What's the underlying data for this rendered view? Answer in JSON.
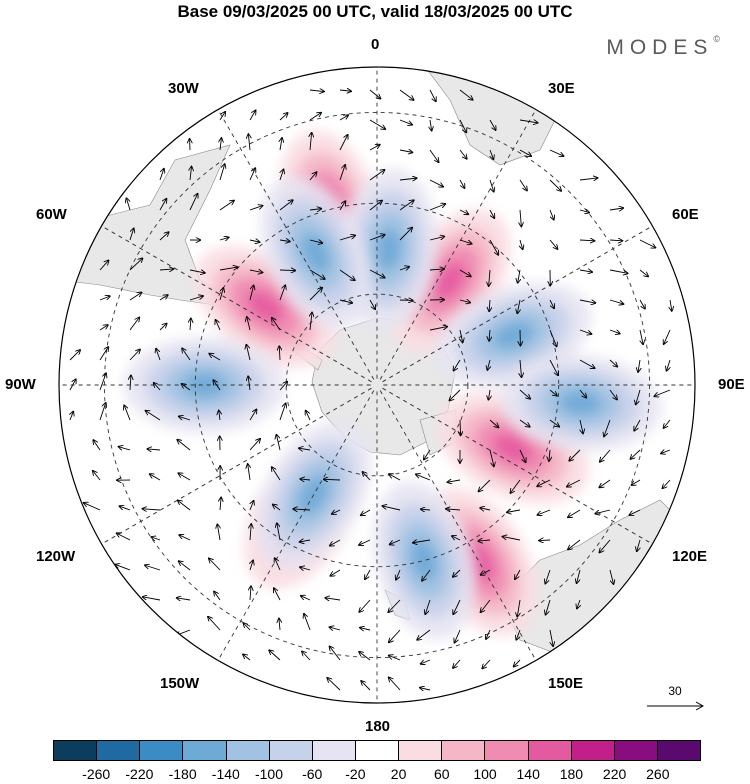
{
  "title": "Base 09/03/2025 00 UTC, valid 18/03/2025 00 UTC",
  "brand": "MODES",
  "brand_mark": "©",
  "longitude_labels": {
    "top": "0",
    "top_right": "30E",
    "right_upper": "60E",
    "right": "90E",
    "right_lower": "120E",
    "bottom_right": "150E",
    "bottom": "180",
    "bottom_left": "150W",
    "left_lower": "120W",
    "left": "90W",
    "left_upper": "60W",
    "top_left": "30W"
  },
  "reference_vector": {
    "label": "30"
  },
  "colorbar": {
    "levels": [
      "-260",
      "-220",
      "-180",
      "-140",
      "-100",
      "-60",
      "-20",
      "20",
      "60",
      "100",
      "140",
      "180",
      "220",
      "260"
    ],
    "colors": [
      "#0d3d5c",
      "#1f6aa0",
      "#3b8cc4",
      "#6eaad6",
      "#a1c2e2",
      "#c6d2ea",
      "#e6e4f2",
      "#ffffff",
      "#f9dde2",
      "#f5b7c8",
      "#f08bb1",
      "#e45aa0",
      "#c11f8a",
      "#8a0d7f",
      "#5a0a6e"
    ]
  },
  "map": {
    "projection": "south-polar-stereographic",
    "field": "geopotential height anomaly",
    "vectors": "wind",
    "land_color": "#e8e8e8",
    "positive_centers_deg": [
      [
        35,
        62
      ],
      [
        -55,
        60
      ],
      [
        115,
        57
      ],
      [
        -150,
        57
      ],
      [
        150,
        45
      ],
      [
        -15,
        50
      ]
    ],
    "negative_centers_deg": [
      [
        5,
        60
      ],
      [
        -25,
        58
      ],
      [
        70,
        58
      ],
      [
        -90,
        52
      ],
      [
        -150,
        62
      ],
      [
        165,
        50
      ],
      [
        95,
        45
      ]
    ]
  }
}
